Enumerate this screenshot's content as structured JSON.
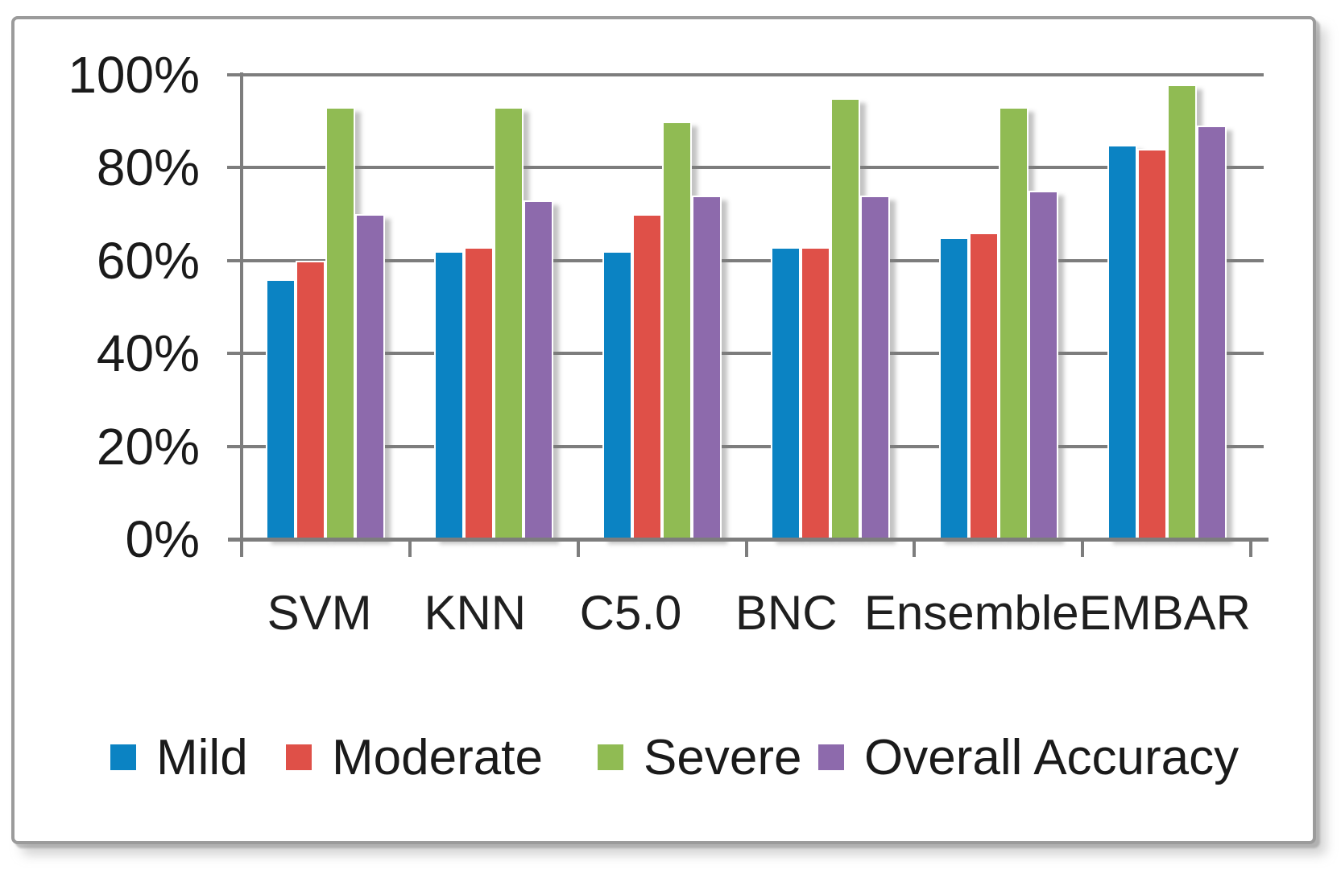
{
  "chart_data": {
    "type": "bar",
    "title": "",
    "xlabel": "",
    "ylabel": "",
    "categories": [
      "SVM",
      "KNN",
      "C5.0",
      "BNC",
      "Ensemble",
      "EMBAR"
    ],
    "series": [
      {
        "name": "Mild",
        "color": "#0B83C3",
        "values": [
          56,
          62,
          62,
          63,
          65,
          85
        ]
      },
      {
        "name": "Moderate",
        "color": "#DF5048",
        "values": [
          60,
          63,
          70,
          63,
          66,
          84
        ]
      },
      {
        "name": "Severe",
        "color": "#90BB53",
        "values": [
          93,
          93,
          90,
          95,
          93,
          98
        ]
      },
      {
        "name": "Overall Accuracy",
        "color": "#8D6AAC",
        "values": [
          70,
          73,
          74,
          74,
          75,
          89
        ]
      }
    ],
    "value_unit": "%",
    "ylim": [
      0,
      100
    ],
    "ytick_labels": [
      "100%",
      "80%",
      "60%",
      "40%",
      "20%",
      "0%"
    ],
    "grid": true,
    "legend_position": "bottom"
  },
  "style": {
    "axis_color": "#7d7d7d",
    "frame_border_color": "#9b9b9b",
    "text_color": "#1a1a1a"
  }
}
